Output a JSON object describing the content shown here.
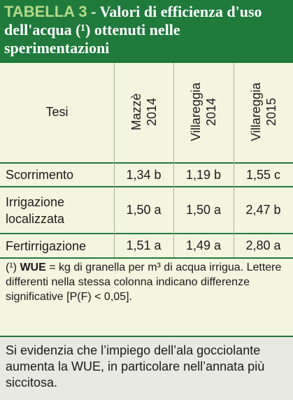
{
  "header": {
    "label": "TABELLA 3",
    "title": " - Valori di efficienza d'uso dell'acqua (¹) ottenuti nelle sperimentazioni"
  },
  "table": {
    "columns": [
      [
        "Tesi"
      ],
      [
        "Mazzè",
        "2014"
      ],
      [
        "Villareggia",
        "2014"
      ],
      [
        "Villareggia",
        "2015"
      ]
    ],
    "rows": [
      [
        "Scorrimento",
        "1,34 b",
        "1,19 b",
        "1,55 c"
      ],
      [
        "Irrigazione localizzata",
        "1,50 a",
        "1,50 a",
        "2,47 b"
      ],
      [
        "Fertirrigazione",
        "1,51 a",
        "1,49 a",
        "2,80 a"
      ]
    ]
  },
  "footnote": {
    "marker": "(¹)",
    "term": "WUE",
    "text": " = kg di granella per m³ di acqua irrigua. Lettere differenti nella stessa colonna indicano differenze significative [P(F) < 0,05]."
  },
  "note": "Si evidenzia che l’impiego dell’ala gocciolante aumenta la WUE, in particolare nell’annata più siccitosa."
}
